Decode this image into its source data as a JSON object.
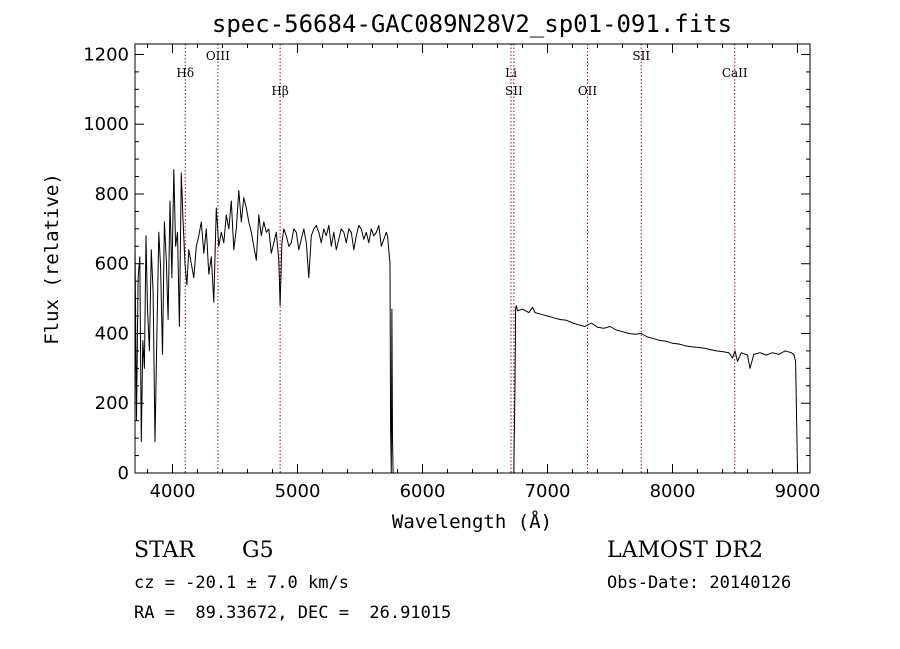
{
  "chart_data": {
    "type": "line",
    "title": "spec-56684-GAC089N28V2_sp01-091.fits",
    "xlabel": "Wavelength (Å)",
    "ylabel": "Flux (relative)",
    "xlim": [
      3700,
      9100
    ],
    "ylim": [
      0,
      1230
    ],
    "xticks": [
      4000,
      5000,
      6000,
      7000,
      8000,
      9000
    ],
    "xtick_labels": [
      "4000",
      "5000",
      "6000",
      "7000",
      "8000",
      "9000"
    ],
    "yticks": [
      0,
      200,
      400,
      600,
      800,
      1000,
      1200
    ],
    "ytick_labels": [
      "0",
      "200",
      "400",
      "600",
      "800",
      "1000",
      "1200"
    ],
    "grid": false,
    "series": [
      {
        "x": [
          3700,
          3712,
          3725,
          3738,
          3750,
          3762,
          3775,
          3788,
          3800,
          3815,
          3830,
          3845,
          3860,
          3875,
          3890,
          3905,
          3920,
          3935,
          3950,
          3965,
          3980,
          3995,
          4010,
          4025,
          4040,
          4055,
          4070,
          4085,
          4100,
          4115,
          4130,
          4150,
          4170,
          4190,
          4210,
          4230,
          4250,
          4270,
          4290,
          4310,
          4330,
          4350,
          4370,
          4390,
          4410,
          4430,
          4450,
          4470,
          4490,
          4510,
          4530,
          4550,
          4570,
          4590,
          4610,
          4630,
          4650,
          4670,
          4690,
          4710,
          4730,
          4750,
          4770,
          4790,
          4810,
          4830,
          4850,
          4861,
          4875,
          4890,
          4910,
          4930,
          4950,
          4970,
          4990,
          5010,
          5030,
          5050,
          5070,
          5090,
          5110,
          5130,
          5150,
          5170,
          5190,
          5210,
          5230,
          5250,
          5270,
          5290,
          5310,
          5330,
          5350,
          5370,
          5390,
          5410,
          5430,
          5450,
          5470,
          5490,
          5510,
          5530,
          5550,
          5570,
          5590,
          5610,
          5630,
          5650,
          5670,
          5690,
          5710,
          5720,
          5730,
          5740,
          5745,
          5750,
          5755,
          5760,
          5765,
          5770
        ],
        "y": [
          660,
          150,
          560,
          620,
          90,
          380,
          300,
          680,
          470,
          350,
          640,
          520,
          90,
          400,
          690,
          590,
          340,
          720,
          610,
          440,
          780,
          560,
          870,
          650,
          690,
          420,
          860,
          720,
          600,
          540,
          640,
          600,
          560,
          650,
          680,
          720,
          630,
          700,
          570,
          620,
          490,
          760,
          650,
          690,
          660,
          740,
          700,
          780,
          640,
          700,
          810,
          720,
          790,
          760,
          720,
          690,
          650,
          610,
          740,
          680,
          720,
          690,
          700,
          630,
          660,
          690,
          610,
          480,
          660,
          700,
          680,
          650,
          660,
          700,
          690,
          640,
          670,
          700,
          660,
          560,
          680,
          700,
          710,
          690,
          660,
          700,
          680,
          710,
          650,
          690,
          640,
          670,
          700,
          690,
          660,
          700,
          690,
          640,
          680,
          710,
          700,
          670,
          690,
          660,
          700,
          680,
          690,
          710,
          650,
          670,
          690,
          680,
          640,
          600,
          120,
          0,
          470,
          100,
          0,
          0
        ]
      },
      {
        "x": [
          6730,
          6740,
          6745,
          6750,
          6760,
          6800,
          6850,
          6880,
          6900,
          6950,
          7000,
          7050,
          7100,
          7150,
          7200,
          7250,
          7300,
          7350,
          7400,
          7450,
          7500,
          7550,
          7600,
          7650,
          7700,
          7750,
          7800,
          7850,
          7900,
          7950,
          8000,
          8050,
          8100,
          8150,
          8200,
          8250,
          8300,
          8350,
          8400,
          8450,
          8480,
          8500,
          8520,
          8550,
          8600,
          8620,
          8650,
          8700,
          8750,
          8800,
          8850,
          8900,
          8950,
          8970,
          8985,
          9000
        ],
        "y": [
          0,
          250,
          470,
          480,
          465,
          470,
          460,
          475,
          460,
          455,
          450,
          445,
          440,
          438,
          430,
          425,
          420,
          430,
          418,
          415,
          420,
          410,
          405,
          400,
          398,
          400,
          390,
          385,
          380,
          378,
          372,
          370,
          365,
          362,
          360,
          358,
          354,
          350,
          348,
          345,
          330,
          350,
          320,
          345,
          338,
          300,
          340,
          345,
          338,
          345,
          340,
          350,
          345,
          340,
          320,
          5
        ]
      }
    ],
    "annotations": [
      {
        "label": "Hδ",
        "x": 4102,
        "row": 1
      },
      {
        "label": "OIII",
        "x": 4363,
        "row": 0
      },
      {
        "label": "Hβ",
        "x": 4861,
        "row": 2
      },
      {
        "label": "Li",
        "x": 6708,
        "row": 1
      },
      {
        "label": "SII",
        "x": 6731,
        "row": 2
      },
      {
        "label": "OII",
        "x": 7320,
        "row": 2
      },
      {
        "label": "SII",
        "x": 7750,
        "row": 0
      },
      {
        "label": "CaII",
        "x": 8498,
        "row": 1
      }
    ],
    "line_color": "#000000",
    "annotation_color": "#8b1a1a"
  },
  "info": {
    "object_class": "STAR",
    "subclass": "G5",
    "survey": "LAMOST DR2",
    "cz": "cz = -20.1 ± 7.0 km/s",
    "obs_date": "Obs-Date: 20140126",
    "coords": "RA =  89.33672, DEC =  26.91015"
  }
}
